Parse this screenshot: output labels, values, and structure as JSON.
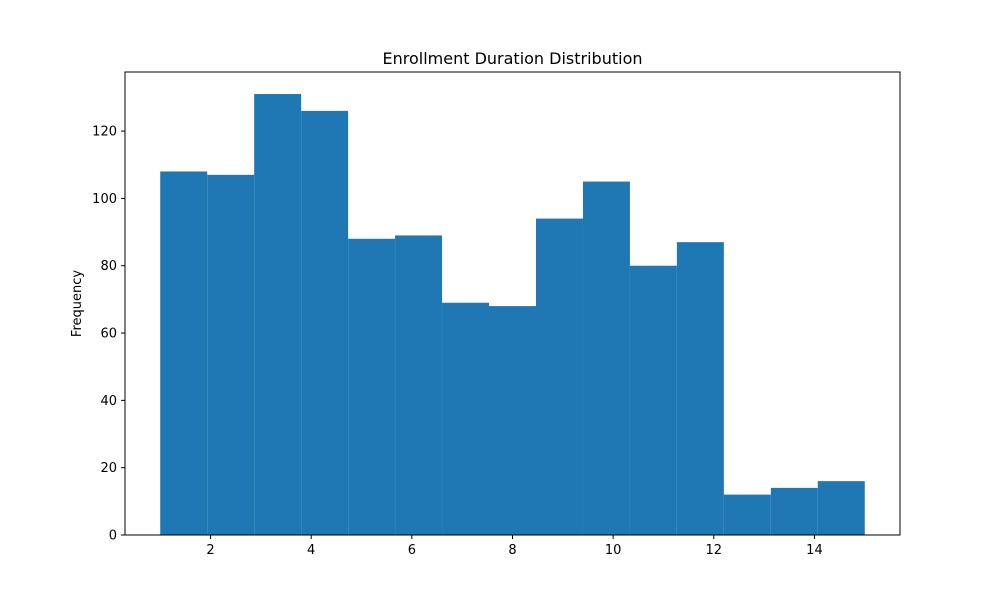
{
  "chart_data": {
    "type": "bar",
    "title": "Enrollment Duration Distribution",
    "xlabel": "",
    "ylabel": "Frequency",
    "xlim": [
      0.3,
      15.7
    ],
    "ylim": [
      0,
      137.55
    ],
    "bin_edges": [
      1.0,
      1.9333,
      2.8667,
      3.8,
      4.7333,
      5.6667,
      6.6,
      7.5333,
      8.4667,
      9.4,
      10.3333,
      11.2667,
      12.2,
      13.1333,
      14.0667,
      15.0
    ],
    "values": [
      108,
      107,
      131,
      126,
      88,
      89,
      69,
      68,
      94,
      105,
      80,
      87,
      12,
      14,
      16
    ],
    "x_ticks": [
      2,
      4,
      6,
      8,
      10,
      12,
      14
    ],
    "y_ticks": [
      0,
      20,
      40,
      60,
      80,
      100,
      120
    ],
    "bar_color": "#1f77b4",
    "grid": false,
    "legend": null
  }
}
